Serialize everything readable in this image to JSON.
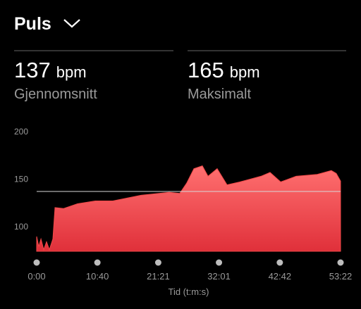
{
  "header": {
    "title": "Puls"
  },
  "stats": [
    {
      "value": 137,
      "unit": "bpm",
      "label": "Gjennomsnitt"
    },
    {
      "value": 165,
      "unit": "bpm",
      "label": "Maksimalt"
    }
  ],
  "chart_data": {
    "type": "area",
    "x_label": "Tid (t:m:s)",
    "color": "#f04848",
    "x": [
      0,
      22,
      45,
      74,
      104,
      134,
      171,
      193,
      282,
      431,
      617,
      802,
      1100,
      1397,
      1508,
      1582,
      1657,
      1746,
      1805,
      1902,
      2006,
      2140,
      2363,
      2459,
      2571,
      2734,
      2957,
      3105,
      3157,
      3202
    ],
    "values": [
      89.6,
      79,
      87,
      75.6,
      84,
      75.6,
      87,
      120,
      119,
      124,
      127,
      127,
      133,
      136,
      135,
      146,
      161,
      164,
      153,
      161,
      144,
      147,
      153,
      157,
      147,
      153,
      155,
      159,
      156,
      148
    ],
    "xlim": [
      0,
      3202
    ],
    "xticks": [
      {
        "value": 0,
        "label": "0:00"
      },
      {
        "value": 640,
        "label": "10:40"
      },
      {
        "value": 1281,
        "label": "21:21"
      },
      {
        "value": 1921,
        "label": "32:01"
      },
      {
        "value": 2562,
        "label": "42:42"
      },
      {
        "value": 3202,
        "label": "53:22"
      }
    ],
    "ylim": [
      74,
      200
    ],
    "yticks": [
      100,
      150,
      200
    ],
    "grid": false
  }
}
